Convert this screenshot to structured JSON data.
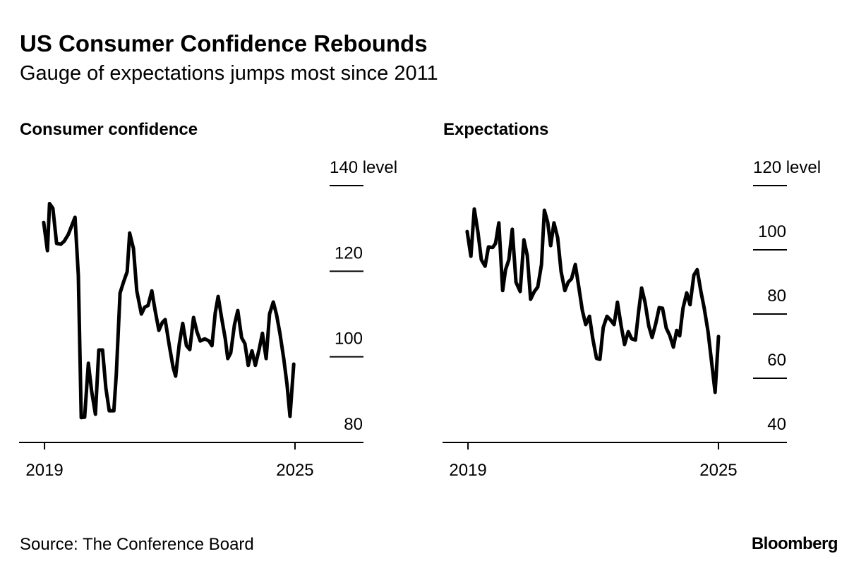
{
  "title": "US Consumer Confidence Rebounds",
  "subtitle": "Gauge of expectations jumps most since 2011",
  "source": "Source: The Conference Board",
  "brand": "Bloomberg",
  "chart_data": [
    {
      "type": "line",
      "title": "Consumer confidence",
      "color": "#000000",
      "xlim": [
        2018.39,
        2026.59
      ],
      "xticks": [
        2019,
        2025
      ],
      "ylim": [
        80,
        140
      ],
      "yticks": [
        {
          "value": 140,
          "label": "140 level"
        },
        120,
        100,
        80
      ],
      "x": [
        2018.98,
        2019.07,
        2019.12,
        2019.2,
        2019.29,
        2019.39,
        2019.47,
        2019.57,
        2019.73,
        2019.81,
        2019.88,
        2019.96,
        2020.05,
        2020.13,
        2020.22,
        2020.3,
        2020.39,
        2020.47,
        2020.55,
        2020.66,
        2020.72,
        2020.81,
        2020.89,
        2020.98,
        2021.04,
        2021.13,
        2021.21,
        2021.32,
        2021.4,
        2021.48,
        2021.57,
        2021.65,
        2021.74,
        2021.82,
        2021.89,
        2021.99,
        2022.08,
        2022.14,
        2022.23,
        2022.31,
        2022.4,
        2022.48,
        2022.57,
        2022.65,
        2022.73,
        2022.84,
        2022.94,
        2023.01,
        2023.09,
        2023.16,
        2023.24,
        2023.33,
        2023.39,
        2023.46,
        2023.55,
        2023.63,
        2023.72,
        2023.8,
        2023.88,
        2023.97,
        2024.05,
        2024.14,
        2024.22,
        2024.31,
        2024.39,
        2024.48,
        2024.56,
        2024.64,
        2024.73,
        2024.81,
        2024.88,
        2024.97
      ],
      "values": [
        131.4,
        124.8,
        135.8,
        134.7,
        126.5,
        126.3,
        127.0,
        128.6,
        132.6,
        119.0,
        85.8,
        85.9,
        98.5,
        91.9,
        86.6,
        101.6,
        101.6,
        92.7,
        87.4,
        87.4,
        96.0,
        114.9,
        117.4,
        119.9,
        128.9,
        125.3,
        115.4,
        110.0,
        111.6,
        112.0,
        115.4,
        110.8,
        106.2,
        108.0,
        108.7,
        102.6,
        97.6,
        95.5,
        103.1,
        107.8,
        102.6,
        101.7,
        109.2,
        105.9,
        103.7,
        104.2,
        103.7,
        102.6,
        110.3,
        114.1,
        109.2,
        104.2,
        99.6,
        100.9,
        107.5,
        110.8,
        104.5,
        103.1,
        98.0,
        101.4,
        98.0,
        101.7,
        105.5,
        99.6,
        110.0,
        112.8,
        109.8,
        105.4,
        99.6,
        93.5,
        86.1,
        98.3
      ]
    },
    {
      "type": "line",
      "title": "Expectations",
      "color": "#000000",
      "xlim": [
        2018.39,
        2026.59
      ],
      "xticks": [
        2019,
        2025
      ],
      "ylim": [
        40,
        120
      ],
      "yticks": [
        {
          "value": 120,
          "label": "120 level"
        },
        100,
        80,
        60,
        40
      ],
      "x": [
        2018.98,
        2019.07,
        2019.15,
        2019.24,
        2019.32,
        2019.41,
        2019.49,
        2019.59,
        2019.66,
        2019.74,
        2019.83,
        2019.9,
        2019.98,
        2020.06,
        2020.15,
        2020.25,
        2020.34,
        2020.42,
        2020.5,
        2020.59,
        2020.67,
        2020.76,
        2020.83,
        2020.91,
        2020.98,
        2021.06,
        2021.15,
        2021.23,
        2021.32,
        2021.4,
        2021.48,
        2021.57,
        2021.65,
        2021.74,
        2021.82,
        2021.91,
        2021.99,
        2022.08,
        2022.16,
        2022.24,
        2022.33,
        2022.41,
        2022.5,
        2022.58,
        2022.67,
        2022.75,
        2022.84,
        2022.92,
        2023.01,
        2023.09,
        2023.16,
        2023.24,
        2023.33,
        2023.41,
        2023.5,
        2023.58,
        2023.66,
        2023.75,
        2023.83,
        2023.92,
        2024.0,
        2024.07,
        2024.15,
        2024.24,
        2024.32,
        2024.41,
        2024.49,
        2024.58,
        2024.66,
        2024.75,
        2024.83,
        2024.92,
        2025.0
      ],
      "values": [
        105.7,
        98.0,
        112.7,
        105.3,
        96.9,
        94.9,
        100.9,
        100.7,
        102.0,
        108.4,
        87.3,
        93.8,
        96.9,
        106.4,
        89.9,
        87.0,
        103.1,
        98.2,
        84.6,
        87.0,
        88.4,
        95.4,
        112.3,
        108.6,
        101.3,
        108.4,
        103.7,
        93.2,
        87.3,
        89.9,
        91.0,
        95.4,
        88.8,
        81.1,
        76.7,
        79.3,
        72.3,
        66.2,
        65.9,
        75.8,
        79.3,
        78.2,
        76.7,
        83.7,
        76.3,
        70.5,
        74.5,
        72.3,
        71.9,
        81.1,
        88.1,
        83.7,
        76.3,
        72.7,
        77.1,
        82.0,
        81.8,
        75.6,
        73.4,
        69.7,
        74.9,
        73.2,
        81.8,
        86.6,
        82.9,
        92.1,
        93.8,
        87.0,
        81.8,
        74.5,
        65.7,
        55.6,
        73.0
      ]
    }
  ]
}
